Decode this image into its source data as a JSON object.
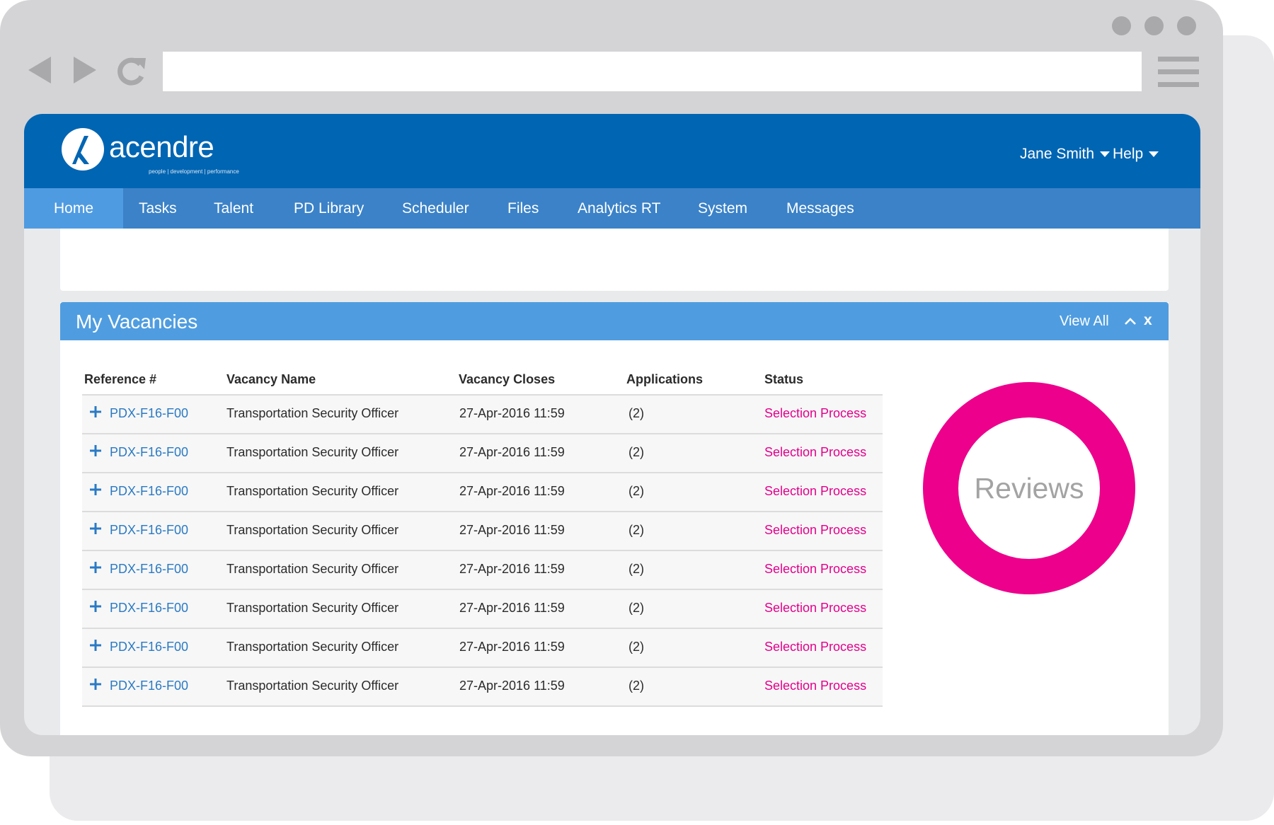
{
  "app": {
    "logo_text": "acendre",
    "logo_tagline": "people | development | performance",
    "user_name": "Jane Smith",
    "help_label": "Help"
  },
  "nav": {
    "items": [
      {
        "label": "Home",
        "active": true
      },
      {
        "label": "Tasks"
      },
      {
        "label": "Talent"
      },
      {
        "label": "PD Library"
      },
      {
        "label": "Scheduler"
      },
      {
        "label": "Files"
      },
      {
        "label": "Analytics RT"
      },
      {
        "label": "System"
      },
      {
        "label": "Messages"
      }
    ]
  },
  "vacancies": {
    "title": "My Vacancies",
    "view_all_label": "View All",
    "close_label": "x",
    "columns": [
      "Reference #",
      "Vacancy Name",
      "Vacancy Closes",
      "Applications",
      "Status"
    ],
    "rows": [
      {
        "ref": "PDX-F16-F00",
        "name": "Transportation Security Officer",
        "closes": "27-Apr-2016 11:59",
        "applications": "(2)",
        "status": "Selection Process"
      },
      {
        "ref": "PDX-F16-F00",
        "name": "Transportation Security Officer",
        "closes": "27-Apr-2016 11:59",
        "applications": "(2)",
        "status": "Selection Process"
      },
      {
        "ref": "PDX-F16-F00",
        "name": "Transportation Security Officer",
        "closes": "27-Apr-2016 11:59",
        "applications": "(2)",
        "status": "Selection Process"
      },
      {
        "ref": "PDX-F16-F00",
        "name": "Transportation Security Officer",
        "closes": "27-Apr-2016 11:59",
        "applications": "(2)",
        "status": "Selection Process"
      },
      {
        "ref": "PDX-F16-F00",
        "name": "Transportation Security Officer",
        "closes": "27-Apr-2016 11:59",
        "applications": "(2)",
        "status": "Selection Process"
      },
      {
        "ref": "PDX-F16-F00",
        "name": "Transportation Security Officer",
        "closes": "27-Apr-2016 11:59",
        "applications": "(2)",
        "status": "Selection Process"
      },
      {
        "ref": "PDX-F16-F00",
        "name": "Transportation Security Officer",
        "closes": "27-Apr-2016 11:59",
        "applications": "(2)",
        "status": "Selection Process"
      },
      {
        "ref": "PDX-F16-F00",
        "name": "Transportation Security Officer",
        "closes": "27-Apr-2016 11:59",
        "applications": "(2)",
        "status": "Selection Process"
      }
    ],
    "donut_label": "Reviews"
  },
  "icons": {
    "back": "back-arrow-icon",
    "forward": "forward-arrow-icon",
    "reload": "reload-icon",
    "menu": "hamburger-menu-icon",
    "expand_row": "plus-icon",
    "collapse": "chevron-up-icon"
  },
  "colors": {
    "header_blue": "#0065b3",
    "nav_blue": "#3b82c8",
    "active_tab": "#4f9be2",
    "panel_header": "#4f9de0",
    "link_blue": "#2a7ac4",
    "status_magenta": "#e3008c",
    "donut_magenta": "#ec008c",
    "frame_gray": "#d4d4d6"
  }
}
